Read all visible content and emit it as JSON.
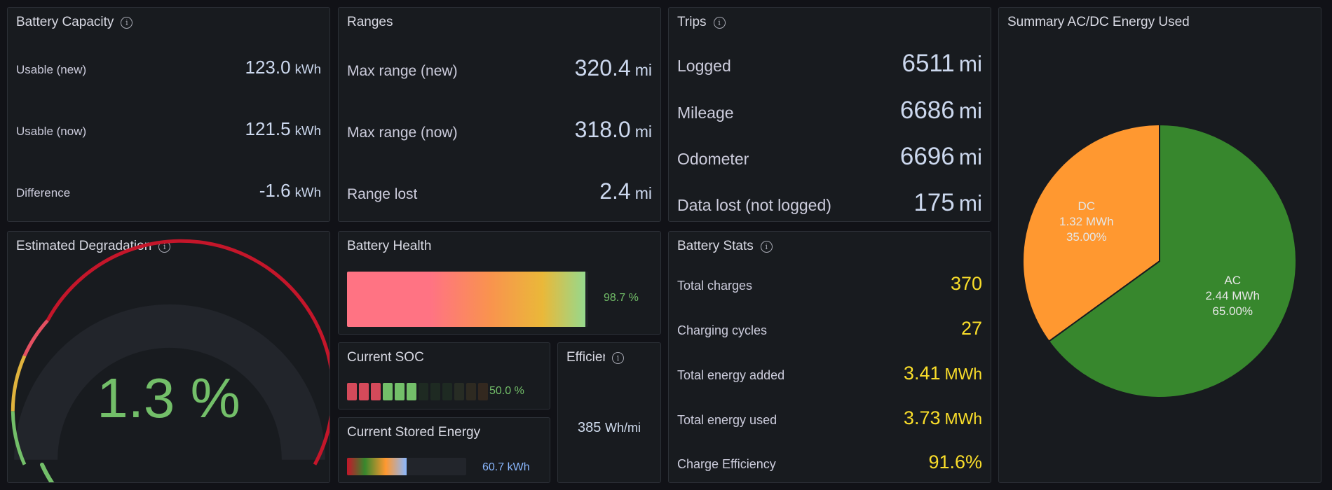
{
  "battery_capacity": {
    "title": "Battery Capacity",
    "rows": [
      {
        "label": "Usable (new)",
        "value": "123.0",
        "unit": "kWh"
      },
      {
        "label": "Usable (now)",
        "value": "121.5",
        "unit": "kWh"
      },
      {
        "label": "Difference",
        "value": "-1.6",
        "unit": "kWh"
      }
    ]
  },
  "ranges": {
    "title": "Ranges",
    "rows": [
      {
        "label": "Max range (new)",
        "value": "320.4",
        "unit": "mi"
      },
      {
        "label": "Max range (now)",
        "value": "318.0",
        "unit": "mi"
      },
      {
        "label": "Range lost",
        "value": "2.4",
        "unit": "mi"
      }
    ]
  },
  "trips": {
    "title": "Trips",
    "rows": [
      {
        "label": "Logged",
        "value": "6511",
        "unit": "mi"
      },
      {
        "label": "Mileage",
        "value": "6686",
        "unit": "mi"
      },
      {
        "label": "Odometer",
        "value": "6696",
        "unit": "mi"
      },
      {
        "label": "Data lost (not logged)",
        "value": "175",
        "unit": "mi"
      }
    ]
  },
  "summary": {
    "title": "Summary AC/DC Energy Used",
    "colors": {
      "ac": "#37872d",
      "dc": "#ff9830"
    }
  },
  "degradation": {
    "title": "Estimated Degradation",
    "value": "1.3 %",
    "value_color": "#73bf69"
  },
  "battery_health": {
    "title": "Battery Health",
    "value": "98.7 %",
    "level": 0.987
  },
  "current_soc": {
    "title": "Current SOC",
    "value": "50.0 %",
    "level": 0.5,
    "segments": 12
  },
  "efficiency": {
    "title": "Efficiency",
    "value": "385",
    "unit": "Wh/mi"
  },
  "stored_energy": {
    "title": "Current Stored Energy",
    "value": "60.7 kWh",
    "level": 0.5
  },
  "battery_stats": {
    "title": "Battery Stats",
    "rows": [
      {
        "label": "Total charges",
        "value": "370",
        "unit": ""
      },
      {
        "label": "Charging cycles",
        "value": "27",
        "unit": ""
      },
      {
        "label": "Total energy added",
        "value": "3.41",
        "unit": "MWh"
      },
      {
        "label": "Total energy used",
        "value": "3.73",
        "unit": "MWh"
      },
      {
        "label": "Charge Efficiency",
        "value": "91.6%",
        "unit": ""
      }
    ]
  },
  "chart_data": {
    "type": "pie",
    "title": "Summary AC/DC Energy Used",
    "slices": [
      {
        "name": "AC",
        "value_label": "2.44 MWh",
        "percent_label": "65.00%",
        "percent": 65.0
      },
      {
        "name": "DC",
        "value_label": "1.32 MWh",
        "percent_label": "35.00%",
        "percent": 35.0
      }
    ]
  }
}
